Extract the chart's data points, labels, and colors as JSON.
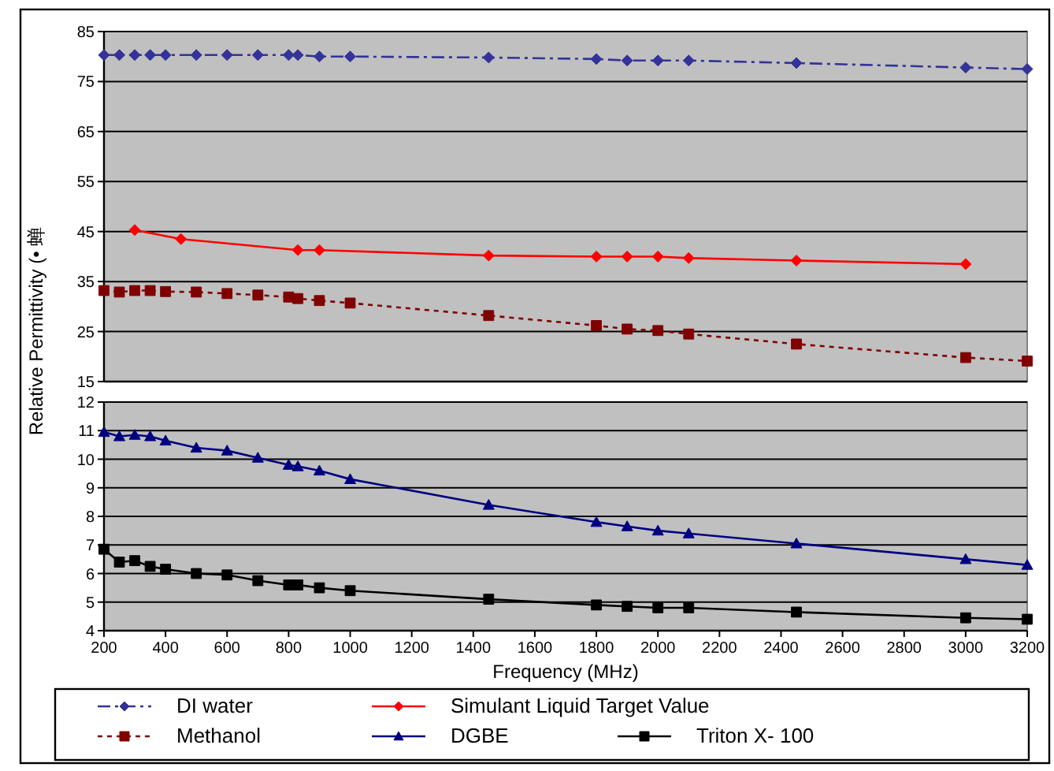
{
  "chart_data": [
    {
      "type": "line",
      "ylabel": "Relative Permittivity (• 蝉",
      "xlim": [
        200,
        3200
      ],
      "ylim": [
        15,
        85
      ],
      "yticks": [
        15,
        25,
        35,
        45,
        55,
        65,
        75,
        85
      ],
      "grid": "y",
      "tick_labels": "y",
      "legend": "bottom",
      "x": [
        200,
        250,
        300,
        350,
        400,
        500,
        600,
        700,
        800,
        830,
        900,
        1000,
        1450,
        1800,
        1900,
        2000,
        2100,
        2450,
        3000,
        3200
      ],
      "series": [
        {
          "name": "DI water",
          "color": "#333399",
          "marker": "diamond",
          "line_style": "dashed",
          "values": [
            80.3,
            80.3,
            80.3,
            80.3,
            80.3,
            80.3,
            80.3,
            80.3,
            80.3,
            80.3,
            80,
            80,
            79.8,
            79.5,
            79.2,
            79.2,
            79.2,
            78.7,
            77.8,
            77.5
          ]
        },
        {
          "name": "Simulant Liquid Target Value",
          "color": "#ff0000",
          "marker": "diamond",
          "line_style": "solid",
          "x": [
            300,
            450,
            830,
            900,
            1450,
            1800,
            1900,
            2000,
            2100,
            2450,
            3000
          ],
          "values": [
            45.3,
            43.5,
            41.3,
            41.3,
            40.2,
            40,
            40,
            40,
            39.7,
            39.2,
            38.5
          ]
        },
        {
          "name": "Methanol",
          "color": "#800000",
          "marker": "square",
          "line_style": "dotted",
          "values": [
            33.2,
            32.9,
            33.2,
            33.2,
            33,
            32.9,
            32.6,
            32.3,
            31.9,
            31.6,
            31.2,
            30.7,
            28.2,
            26.2,
            25.5,
            25.2,
            24.5,
            22.5,
            19.8,
            19.1
          ]
        }
      ]
    },
    {
      "type": "line",
      "xlabel": "Frequency (MHz)",
      "xlim": [
        200,
        3200
      ],
      "xticks": [
        200,
        400,
        600,
        800,
        1000,
        1200,
        1400,
        1600,
        1800,
        2000,
        2200,
        2400,
        2600,
        2800,
        3000,
        3200
      ],
      "ylim": [
        4,
        12
      ],
      "yticks": [
        4,
        5,
        6,
        7,
        8,
        9,
        10,
        11,
        12
      ],
      "grid": "y",
      "legend": "bottom",
      "x": [
        200,
        250,
        300,
        350,
        400,
        500,
        600,
        700,
        800,
        830,
        900,
        1000,
        1450,
        1800,
        1900,
        2000,
        2100,
        2450,
        3000,
        3200
      ],
      "series": [
        {
          "name": "DGBE",
          "color": "#000080",
          "marker": "triangle",
          "line_style": "solid",
          "values": [
            10.95,
            10.8,
            10.85,
            10.8,
            10.65,
            10.4,
            10.3,
            10.05,
            9.8,
            9.75,
            9.6,
            9.3,
            8.4,
            7.8,
            7.65,
            7.5,
            7.4,
            7.05,
            6.5,
            6.3
          ]
        },
        {
          "name": "Triton X- 100",
          "color": "#000000",
          "marker": "square",
          "line_style": "solid",
          "values": [
            6.85,
            6.4,
            6.45,
            6.25,
            6.15,
            6,
            5.95,
            5.75,
            5.6,
            5.6,
            5.5,
            5.4,
            5.1,
            4.9,
            4.85,
            4.8,
            4.8,
            4.65,
            4.45,
            4.4
          ]
        }
      ]
    }
  ]
}
